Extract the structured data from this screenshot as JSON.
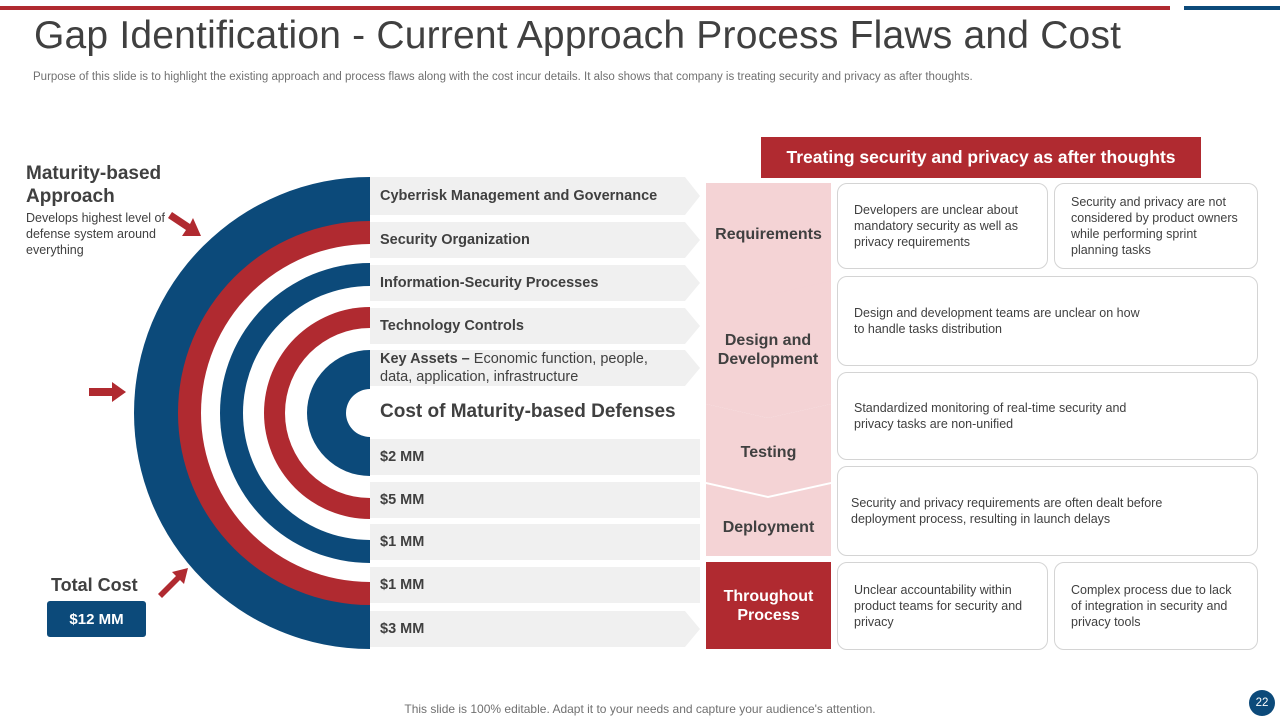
{
  "header": {
    "title": "Gap Identification - Current Approach Process Flaws and Cost",
    "purpose": "Purpose of this slide is to highlight the existing approach and process flaws along with the cost incur details. It also shows that company is treating security and privacy as after thoughts."
  },
  "left": {
    "maturity_title": "Maturity-based Approach",
    "maturity_desc": "Develops highest level of defense system around everything",
    "total_label": "Total Cost",
    "total_value": "$12 MM"
  },
  "layers": [
    {
      "label": "Cyberrisk Management and Governance"
    },
    {
      "label": "Security Organization"
    },
    {
      "label": "Information-Security Processes"
    },
    {
      "label": "Technology Controls"
    },
    {
      "label_bold": "Key Assets –",
      "label_rest": " Economic function, people, data, application, infrastructure"
    }
  ],
  "costs": {
    "heading": "Cost of Maturity-based Defenses",
    "values": [
      "$2 MM",
      "$5 MM",
      "$1 MM",
      "$1 MM",
      "$3 MM"
    ]
  },
  "flaws": {
    "header": "Treating security and privacy as after thoughts",
    "phases": [
      "Requirements",
      "Design and Development",
      "Testing",
      "Deployment",
      "Throughout Process"
    ],
    "cards": {
      "requirements_a": "Developers  are unclear about mandatory security as well as privacy requirements",
      "requirements_b": "Security and privacy are not considered by product owners while performing sprint planning tasks",
      "design": "Design and development teams are unclear on how to handle tasks distribution",
      "testing": "Standardized monitoring of real-time security and privacy tasks are non-unified",
      "deployment": "Security and privacy requirements are often dealt before deployment process, resulting in launch delays",
      "throughout_a": "Unclear accountability within product teams for security and privacy",
      "throughout_b": "Complex process due to lack of integration in security and privacy tools"
    }
  },
  "footer": {
    "note": "This slide is 100% editable. Adapt it to your needs and capture your audience's attention.",
    "page": "22"
  },
  "colors": {
    "red": "#b02a30",
    "blue": "#0c4a7a",
    "pink": "#f4d3d5",
    "gray_band": "#f0f0f0"
  }
}
